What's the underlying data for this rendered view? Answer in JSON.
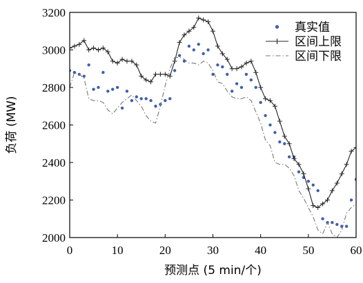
{
  "chart_data": {
    "type": "line",
    "title": "",
    "xlabel": "预测点 (5 min/个)",
    "ylabel": "负荷 (MW)",
    "xlim": [
      0,
      60
    ],
    "ylim": [
      2000,
      3200
    ],
    "xticks": [
      "0",
      "10",
      "20",
      "30",
      "40",
      "50",
      "60"
    ],
    "yticks": [
      "2000",
      "2200",
      "2400",
      "2600",
      "2800",
      "3000",
      "3200"
    ],
    "grid": false,
    "legend_position": "top-right",
    "x": [
      0,
      1,
      2,
      3,
      4,
      5,
      6,
      7,
      8,
      9,
      10,
      11,
      12,
      13,
      14,
      15,
      16,
      17,
      18,
      19,
      20,
      21,
      22,
      23,
      24,
      25,
      26,
      27,
      28,
      29,
      30,
      31,
      32,
      33,
      34,
      35,
      36,
      37,
      38,
      39,
      40,
      41,
      42,
      43,
      44,
      45,
      46,
      47,
      48,
      49,
      50,
      51,
      52,
      53,
      54,
      55,
      56,
      57,
      58,
      59,
      60
    ],
    "series": [
      {
        "name": "真实值",
        "style": "dots",
        "color": "#3f5fa8",
        "values": [
          2890,
          2880,
          2870,
          2860,
          2920,
          2790,
          2800,
          2880,
          2780,
          2790,
          2800,
          2690,
          2780,
          2730,
          2750,
          2740,
          2740,
          2730,
          2700,
          2710,
          2730,
          2740,
          2890,
          2970,
          2940,
          3020,
          3000,
          3030,
          2980,
          3000,
          2870,
          2920,
          2910,
          2870,
          2780,
          2820,
          2800,
          2870,
          2840,
          2800,
          2720,
          2650,
          2600,
          2560,
          2510,
          2500,
          2430,
          2430,
          2350,
          2320,
          2300,
          2280,
          2250,
          2100,
          2080,
          2080,
          2070,
          2060,
          2060,
          2200,
          2310
        ]
      },
      {
        "name": "区间上限",
        "style": "line-plus",
        "color": "#222222",
        "values": [
          3010,
          3020,
          3030,
          3050,
          3000,
          3010,
          3000,
          3010,
          2990,
          2940,
          2930,
          2950,
          2940,
          2940,
          2920,
          2860,
          2840,
          2830,
          2870,
          2870,
          2870,
          2860,
          2940,
          3040,
          3080,
          3100,
          3120,
          3170,
          3160,
          3150,
          3100,
          3020,
          2980,
          2950,
          2900,
          2900,
          2910,
          2930,
          2940,
          2880,
          2800,
          2740,
          2730,
          2700,
          2620,
          2540,
          2500,
          2420,
          2390,
          2340,
          2260,
          2170,
          2160,
          2180,
          2200,
          2250,
          2290,
          2340,
          2390,
          2460,
          2480
        ]
      },
      {
        "name": "区间下限",
        "style": "dash-dot",
        "color": "#777777",
        "values": [
          2800,
          2880,
          2870,
          2850,
          2740,
          2730,
          2730,
          2720,
          2680,
          2660,
          2690,
          2720,
          2740,
          2760,
          2730,
          2700,
          2650,
          2620,
          2610,
          2700,
          2810,
          2900,
          2960,
          2960,
          2950,
          2930,
          2930,
          2920,
          2940,
          2930,
          2890,
          2830,
          2820,
          2780,
          2750,
          2740,
          2740,
          2750,
          2730,
          2670,
          2610,
          2520,
          2490,
          2400,
          2390,
          2390,
          2370,
          2330,
          2250,
          2210,
          2160,
          2110,
          2040,
          2020,
          2080,
          2020,
          2000,
          2040,
          2130,
          2160,
          2180
        ]
      }
    ]
  }
}
